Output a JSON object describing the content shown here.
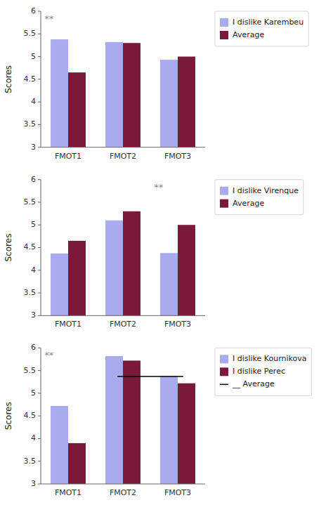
{
  "chart_data": [
    {
      "type": "bar",
      "y_label": "Scores",
      "categories": [
        "FMOT1",
        "FMOT2",
        "FMOT3"
      ],
      "series": [
        {
          "name": "I dislike Karembeu",
          "color": "#aaaaee",
          "values": [
            5.38,
            5.32,
            4.93
          ]
        },
        {
          "name": "Average",
          "color": "#7a1a3a",
          "values": [
            4.65,
            5.3,
            5.0
          ]
        }
      ],
      "annotations": [
        {
          "text": "**",
          "category": "FMOT1",
          "y": 5.82
        }
      ],
      "ylim": [
        3,
        6
      ],
      "yticks": [
        3,
        3.5,
        4,
        4.5,
        5,
        5.5,
        6
      ],
      "grid": false,
      "legend": "right"
    },
    {
      "type": "bar",
      "y_label": "Scores",
      "categories": [
        "FMOT1",
        "FMOT2",
        "FMOT3"
      ],
      "series": [
        {
          "name": "I dislike Virenque",
          "color": "#aaaaee",
          "values": [
            4.37,
            5.1,
            4.38
          ]
        },
        {
          "name": "Average",
          "color": "#7a1a3a",
          "values": [
            4.65,
            5.3,
            5.0
          ]
        }
      ],
      "annotations": [
        {
          "text": "**",
          "category": "FMOT3",
          "y": 5.82
        }
      ],
      "ylim": [
        3,
        6
      ],
      "yticks": [
        3,
        3.5,
        4,
        4.5,
        5,
        5.5,
        6
      ],
      "grid": false,
      "legend": "right"
    },
    {
      "type": "bar",
      "y_label": "Scores",
      "categories": [
        "FMOT1",
        "FMOT2",
        "FMOT3"
      ],
      "series": [
        {
          "name": "I dislike Kournikova",
          "color": "#aaaaee",
          "values": [
            4.72,
            5.82,
            5.38
          ]
        },
        {
          "name": "I dislike Perec",
          "color": "#7a1a3a",
          "values": [
            3.9,
            5.72,
            5.22
          ]
        }
      ],
      "average_line": {
        "name": "__ Average",
        "value": 5.37,
        "color": "#000000",
        "categories": [
          "FMOT2",
          "FMOT3"
        ]
      },
      "annotations": [
        {
          "text": "**",
          "category": "FMOT1",
          "y": 5.82
        }
      ],
      "ylim": [
        3,
        6
      ],
      "yticks": [
        3,
        3.5,
        4,
        4.5,
        5,
        5.5,
        6
      ],
      "grid": false,
      "legend": "right"
    }
  ]
}
